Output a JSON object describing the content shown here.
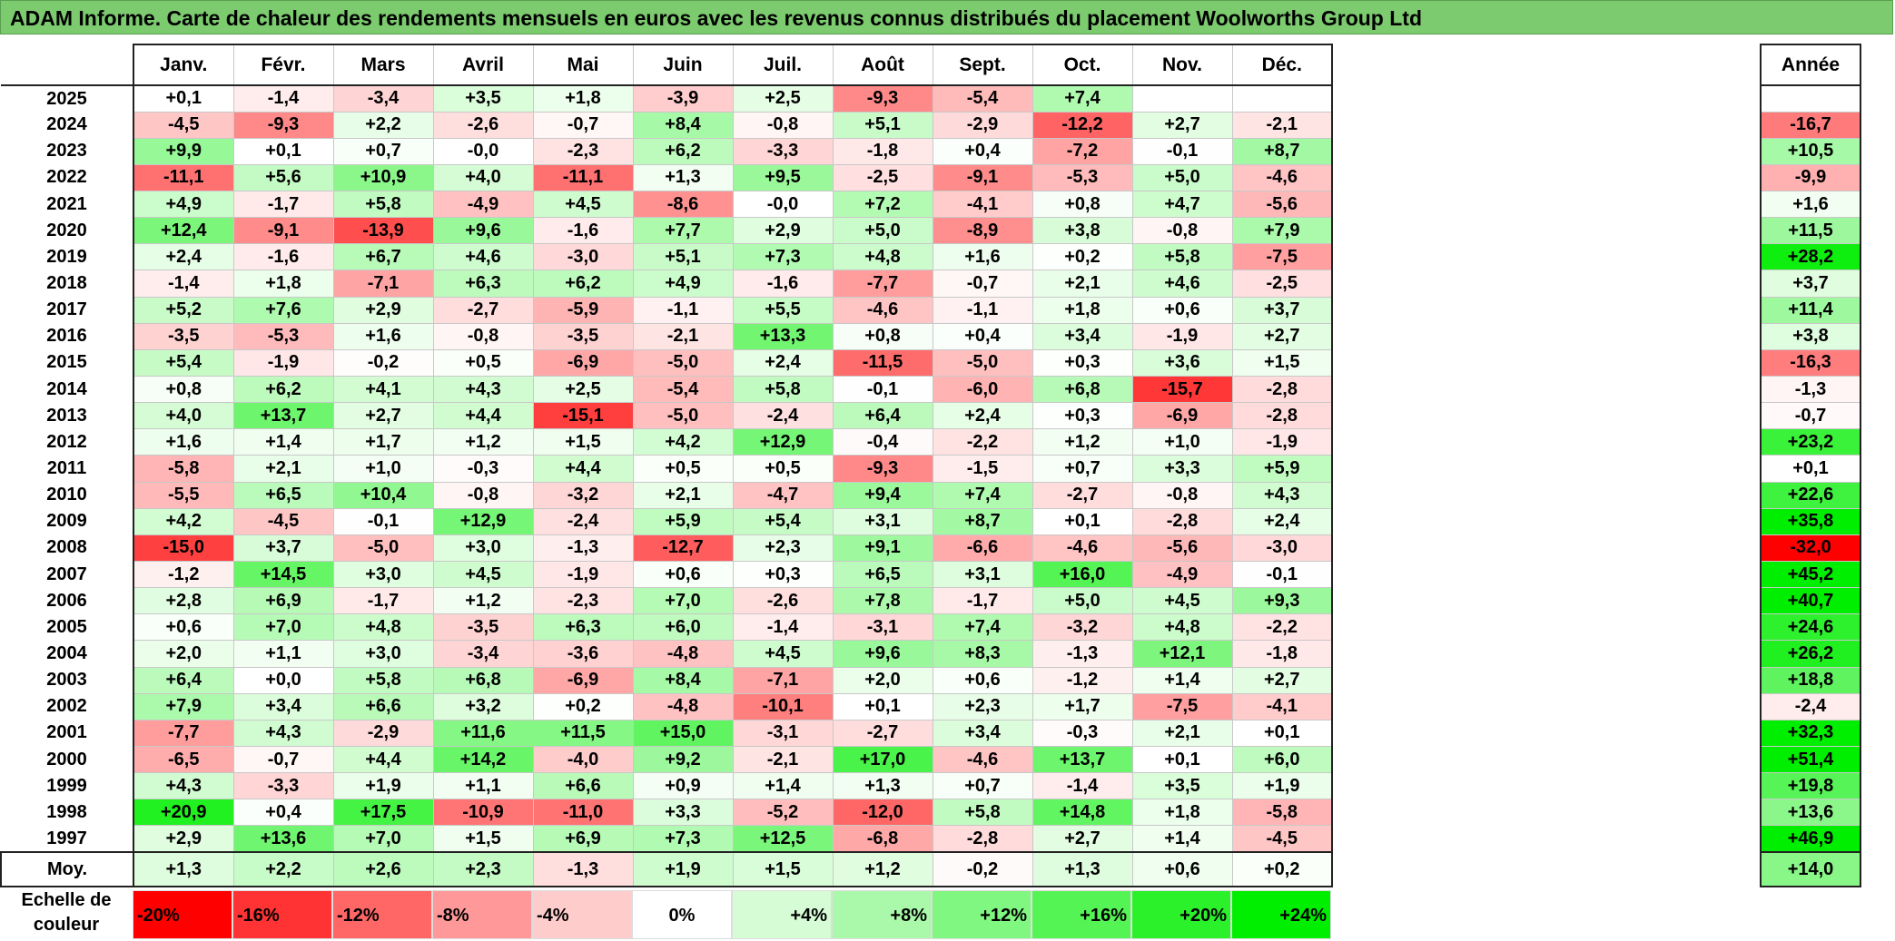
{
  "title": "ADAM Informe. Carte de chaleur des rendements mensuels en euros avec les revenus connus distribués du placement Woolworths Group Ltd",
  "chart_data": {
    "type": "heatmap",
    "months": [
      "Janv.",
      "Févr.",
      "Mars",
      "Avril",
      "Mai",
      "Juin",
      "Juil.",
      "Août",
      "Sept.",
      "Oct.",
      "Nov.",
      "Déc."
    ],
    "year_header": "Année",
    "rows": [
      {
        "year": "2025",
        "values": [
          "+0,1",
          "-1,4",
          "-3,4",
          "+3,5",
          "+1,8",
          "-3,9",
          "+2,5",
          "-9,3",
          "-5,4",
          "+7,4",
          "",
          ""
        ],
        "annual": ""
      },
      {
        "year": "2024",
        "values": [
          "-4,5",
          "-9,3",
          "+2,2",
          "-2,6",
          "-0,7",
          "+8,4",
          "-0,8",
          "+5,1",
          "-2,9",
          "-12,2",
          "+2,7",
          "-2,1"
        ],
        "annual": "-16,7"
      },
      {
        "year": "2023",
        "values": [
          "+9,9",
          "+0,1",
          "+0,7",
          "-0,0",
          "-2,3",
          "+6,2",
          "-3,3",
          "-1,8",
          "+0,4",
          "-7,2",
          "-0,1",
          "+8,7"
        ],
        "annual": "+10,5"
      },
      {
        "year": "2022",
        "values": [
          "-11,1",
          "+5,6",
          "+10,9",
          "+4,0",
          "-11,1",
          "+1,3",
          "+9,5",
          "-2,5",
          "-9,1",
          "-5,3",
          "+5,0",
          "-4,6"
        ],
        "annual": "-9,9"
      },
      {
        "year": "2021",
        "values": [
          "+4,9",
          "-1,7",
          "+5,8",
          "-4,9",
          "+4,5",
          "-8,6",
          "-0,0",
          "+7,2",
          "-4,1",
          "+0,8",
          "+4,7",
          "-5,6"
        ],
        "annual": "+1,6"
      },
      {
        "year": "2020",
        "values": [
          "+12,4",
          "-9,1",
          "-13,9",
          "+9,6",
          "-1,6",
          "+7,7",
          "+2,9",
          "+5,0",
          "-8,9",
          "+3,8",
          "-0,8",
          "+7,9"
        ],
        "annual": "+11,5"
      },
      {
        "year": "2019",
        "values": [
          "+2,4",
          "-1,6",
          "+6,7",
          "+4,6",
          "-3,0",
          "+5,1",
          "+7,3",
          "+4,8",
          "+1,6",
          "+0,2",
          "+5,8",
          "-7,5"
        ],
        "annual": "+28,2"
      },
      {
        "year": "2018",
        "values": [
          "-1,4",
          "+1,8",
          "-7,1",
          "+6,3",
          "+6,2",
          "+4,9",
          "-1,6",
          "-7,7",
          "-0,7",
          "+2,1",
          "+4,6",
          "-2,5"
        ],
        "annual": "+3,7"
      },
      {
        "year": "2017",
        "values": [
          "+5,2",
          "+7,6",
          "+2,9",
          "-2,7",
          "-5,9",
          "-1,1",
          "+5,5",
          "-4,6",
          "-1,1",
          "+1,8",
          "+0,6",
          "+3,7"
        ],
        "annual": "+11,4"
      },
      {
        "year": "2016",
        "values": [
          "-3,5",
          "-5,3",
          "+1,6",
          "-0,8",
          "-3,5",
          "-2,1",
          "+13,3",
          "+0,8",
          "+0,4",
          "+3,4",
          "-1,9",
          "+2,7"
        ],
        "annual": "+3,8"
      },
      {
        "year": "2015",
        "values": [
          "+5,4",
          "-1,9",
          "-0,2",
          "+0,5",
          "-6,9",
          "-5,0",
          "+2,4",
          "-11,5",
          "-5,0",
          "+0,3",
          "+3,6",
          "+1,5"
        ],
        "annual": "-16,3"
      },
      {
        "year": "2014",
        "values": [
          "+0,8",
          "+6,2",
          "+4,1",
          "+4,3",
          "+2,5",
          "-5,4",
          "+5,8",
          "-0,1",
          "-6,0",
          "+6,8",
          "-15,7",
          "-2,8"
        ],
        "annual": "-1,3"
      },
      {
        "year": "2013",
        "values": [
          "+4,0",
          "+13,7",
          "+2,7",
          "+4,4",
          "-15,1",
          "-5,0",
          "-2,4",
          "+6,4",
          "+2,4",
          "+0,3",
          "-6,9",
          "-2,8"
        ],
        "annual": "-0,7"
      },
      {
        "year": "2012",
        "values": [
          "+1,6",
          "+1,4",
          "+1,7",
          "+1,2",
          "+1,5",
          "+4,2",
          "+12,9",
          "-0,4",
          "-2,2",
          "+1,2",
          "+1,0",
          "-1,9"
        ],
        "annual": "+23,2"
      },
      {
        "year": "2011",
        "values": [
          "-5,8",
          "+2,1",
          "+1,0",
          "-0,3",
          "+4,4",
          "+0,5",
          "+0,5",
          "-9,3",
          "-1,5",
          "+0,7",
          "+3,3",
          "+5,9"
        ],
        "annual": "+0,1"
      },
      {
        "year": "2010",
        "values": [
          "-5,5",
          "+6,5",
          "+10,4",
          "-0,8",
          "-3,2",
          "+2,1",
          "-4,7",
          "+9,4",
          "+7,4",
          "-2,7",
          "-0,8",
          "+4,3"
        ],
        "annual": "+22,6"
      },
      {
        "year": "2009",
        "values": [
          "+4,2",
          "-4,5",
          "-0,1",
          "+12,9",
          "-2,4",
          "+5,9",
          "+5,4",
          "+3,1",
          "+8,7",
          "+0,1",
          "-2,8",
          "+2,4"
        ],
        "annual": "+35,8"
      },
      {
        "year": "2008",
        "values": [
          "-15,0",
          "+3,7",
          "-5,0",
          "+3,0",
          "-1,3",
          "-12,7",
          "+2,3",
          "+9,1",
          "-6,6",
          "-4,6",
          "-5,6",
          "-3,0"
        ],
        "annual": "-32,0"
      },
      {
        "year": "2007",
        "values": [
          "-1,2",
          "+14,5",
          "+3,0",
          "+4,5",
          "-1,9",
          "+0,6",
          "+0,3",
          "+6,5",
          "+3,1",
          "+16,0",
          "-4,9",
          "-0,1"
        ],
        "annual": "+45,2"
      },
      {
        "year": "2006",
        "values": [
          "+2,8",
          "+6,9",
          "-1,7",
          "+1,2",
          "-2,3",
          "+7,0",
          "-2,6",
          "+7,8",
          "-1,7",
          "+5,0",
          "+4,5",
          "+9,3"
        ],
        "annual": "+40,7"
      },
      {
        "year": "2005",
        "values": [
          "+0,6",
          "+7,0",
          "+4,8",
          "-3,5",
          "+6,3",
          "+6,0",
          "-1,4",
          "-3,1",
          "+7,4",
          "-3,2",
          "+4,8",
          "-2,2"
        ],
        "annual": "+24,6"
      },
      {
        "year": "2004",
        "values": [
          "+2,0",
          "+1,1",
          "+3,0",
          "-3,4",
          "-3,6",
          "-4,8",
          "+4,5",
          "+9,6",
          "+8,3",
          "-1,3",
          "+12,1",
          "-1,8"
        ],
        "annual": "+26,2"
      },
      {
        "year": "2003",
        "values": [
          "+6,4",
          "+0,0",
          "+5,8",
          "+6,8",
          "-6,9",
          "+8,4",
          "-7,1",
          "+2,0",
          "+0,6",
          "-1,2",
          "+1,4",
          "+2,7"
        ],
        "annual": "+18,8"
      },
      {
        "year": "2002",
        "values": [
          "+7,9",
          "+3,4",
          "+6,6",
          "+3,2",
          "+0,2",
          "-4,8",
          "-10,1",
          "+0,1",
          "+2,3",
          "+1,7",
          "-7,5",
          "-4,1"
        ],
        "annual": "-2,4"
      },
      {
        "year": "2001",
        "values": [
          "-7,7",
          "+4,3",
          "-2,9",
          "+11,6",
          "+11,5",
          "+15,0",
          "-3,1",
          "-2,7",
          "+3,4",
          "-0,3",
          "+2,1",
          "+0,1"
        ],
        "annual": "+32,3"
      },
      {
        "year": "2000",
        "values": [
          "-6,5",
          "-0,7",
          "+4,4",
          "+14,2",
          "-4,0",
          "+9,2",
          "-2,1",
          "+17,0",
          "-4,6",
          "+13,7",
          "+0,1",
          "+6,0"
        ],
        "annual": "+51,4"
      },
      {
        "year": "1999",
        "values": [
          "+4,3",
          "-3,3",
          "+1,9",
          "+1,1",
          "+6,6",
          "+0,9",
          "+1,4",
          "+1,3",
          "+0,7",
          "-1,4",
          "+3,5",
          "+1,9"
        ],
        "annual": "+19,8"
      },
      {
        "year": "1998",
        "values": [
          "+20,9",
          "+0,4",
          "+17,5",
          "-10,9",
          "-11,0",
          "+3,3",
          "-5,2",
          "-12,0",
          "+5,8",
          "+14,8",
          "+1,8",
          "-5,8"
        ],
        "annual": "+13,6"
      },
      {
        "year": "1997",
        "values": [
          "+2,9",
          "+13,6",
          "+7,0",
          "+1,5",
          "+6,9",
          "+7,3",
          "+12,5",
          "-6,8",
          "-2,8",
          "+2,7",
          "+1,4",
          "-4,5"
        ],
        "annual": "+46,9"
      }
    ],
    "average": {
      "label": "Moy.",
      "values": [
        "+1,3",
        "+2,2",
        "+2,6",
        "+2,3",
        "-1,3",
        "+1,9",
        "+1,5",
        "+1,2",
        "-0,2",
        "+1,3",
        "+0,6",
        "+0,2"
      ],
      "annual": "+14,0"
    },
    "color_scale": {
      "label": "Echelle de couleur",
      "steps": [
        "-20%",
        "-16%",
        "-12%",
        "-8%",
        "-4%",
        "0%",
        "+4%",
        "+8%",
        "+12%",
        "+16%",
        "+20%",
        "+24%"
      ],
      "negative_color": "#ff0000",
      "neutral_color": "#ffffff",
      "positive_color": "#00ee00"
    }
  }
}
